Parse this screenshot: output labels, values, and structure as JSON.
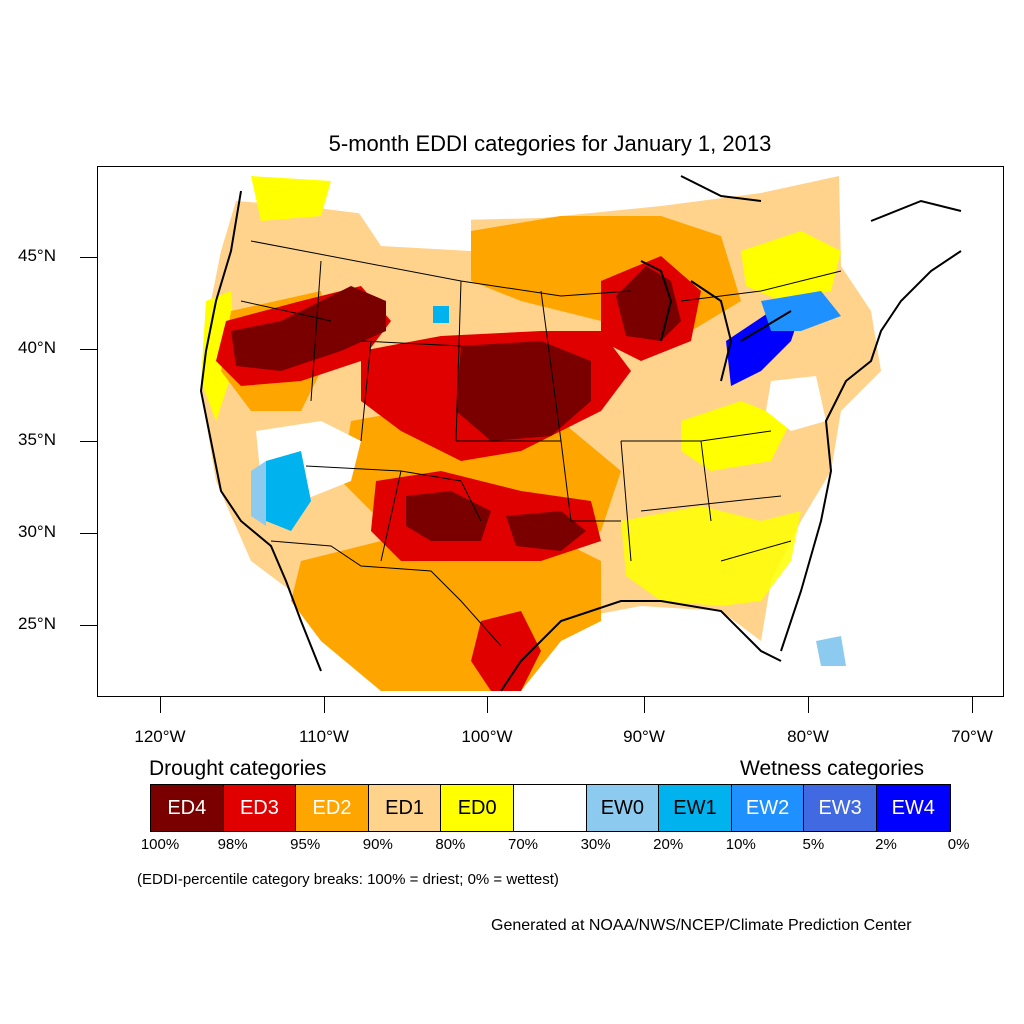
{
  "title": "5-month EDDI categories for January 1, 2013",
  "y_ticks": [
    "45°N",
    "40°N",
    "35°N",
    "30°N",
    "25°N"
  ],
  "x_ticks": [
    "120°W",
    "110°W",
    "100°W",
    "90°W",
    "80°W",
    "70°W"
  ],
  "legend": {
    "drought_heading": "Drought categories",
    "wetness_heading": "Wetness categories",
    "categories": [
      {
        "label": "ED4",
        "color": "#7a0000",
        "text_color": "#ffffff"
      },
      {
        "label": "ED3",
        "color": "#e00000",
        "text_color": "#ffffff"
      },
      {
        "label": "ED2",
        "color": "#ffa500",
        "text_color": "#ffffff"
      },
      {
        "label": "ED1",
        "color": "#ffd38c",
        "text_color": "#000000"
      },
      {
        "label": "ED0",
        "color": "#ffff00",
        "text_color": "#000000"
      },
      {
        "label": "",
        "color": "#ffffff",
        "text_color": "#000000"
      },
      {
        "label": "EW0",
        "color": "#8ccaf0",
        "text_color": "#000000"
      },
      {
        "label": "EW1",
        "color": "#00b2ee",
        "text_color": "#000000"
      },
      {
        "label": "EW2",
        "color": "#1e90ff",
        "text_color": "#ffffff"
      },
      {
        "label": "EW3",
        "color": "#4169e1",
        "text_color": "#ffffff"
      },
      {
        "label": "EW4",
        "color": "#0000ff",
        "text_color": "#ffffff"
      }
    ],
    "breaks": [
      "100%",
      "98%",
      "95%",
      "90%",
      "80%",
      "70%",
      "30%",
      "20%",
      "10%",
      "5%",
      "2%",
      "0%"
    ]
  },
  "note": "(EDDI-percentile category breaks: 100% = driest; 0% = wettest)",
  "credit": "Generated at NOAA/NWS/NCEP/Climate Prediction Center"
}
